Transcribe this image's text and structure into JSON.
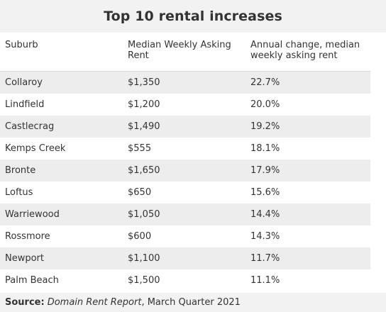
{
  "chart_data": {
    "type": "table",
    "title": "Top 10 rental increases",
    "columns": [
      "Suburb",
      "Median Weekly Asking Rent",
      "Annual change, median weekly asking rent"
    ],
    "rows": [
      [
        "Collaroy",
        "$1,350",
        "22.7%"
      ],
      [
        "Lindfield",
        "$1,200",
        "20.0%"
      ],
      [
        "Castlecrag",
        "$1,490",
        "19.2%"
      ],
      [
        "Kemps Creek",
        "$555",
        "18.1%"
      ],
      [
        "Bronte",
        "$1,650",
        "17.9%"
      ],
      [
        "Loftus",
        "$650",
        "15.6%"
      ],
      [
        "Warriewood",
        "$1,050",
        "14.4%"
      ],
      [
        "Rossmore",
        "$600",
        "14.3%"
      ],
      [
        "Newport",
        "$1,100",
        "11.7%"
      ],
      [
        "Palm Beach",
        "$1,500",
        "11.1%"
      ]
    ],
    "source": {
      "label": "Source:",
      "publication": "Domain Rent Report",
      "period": ", March Quarter 2021"
    }
  }
}
